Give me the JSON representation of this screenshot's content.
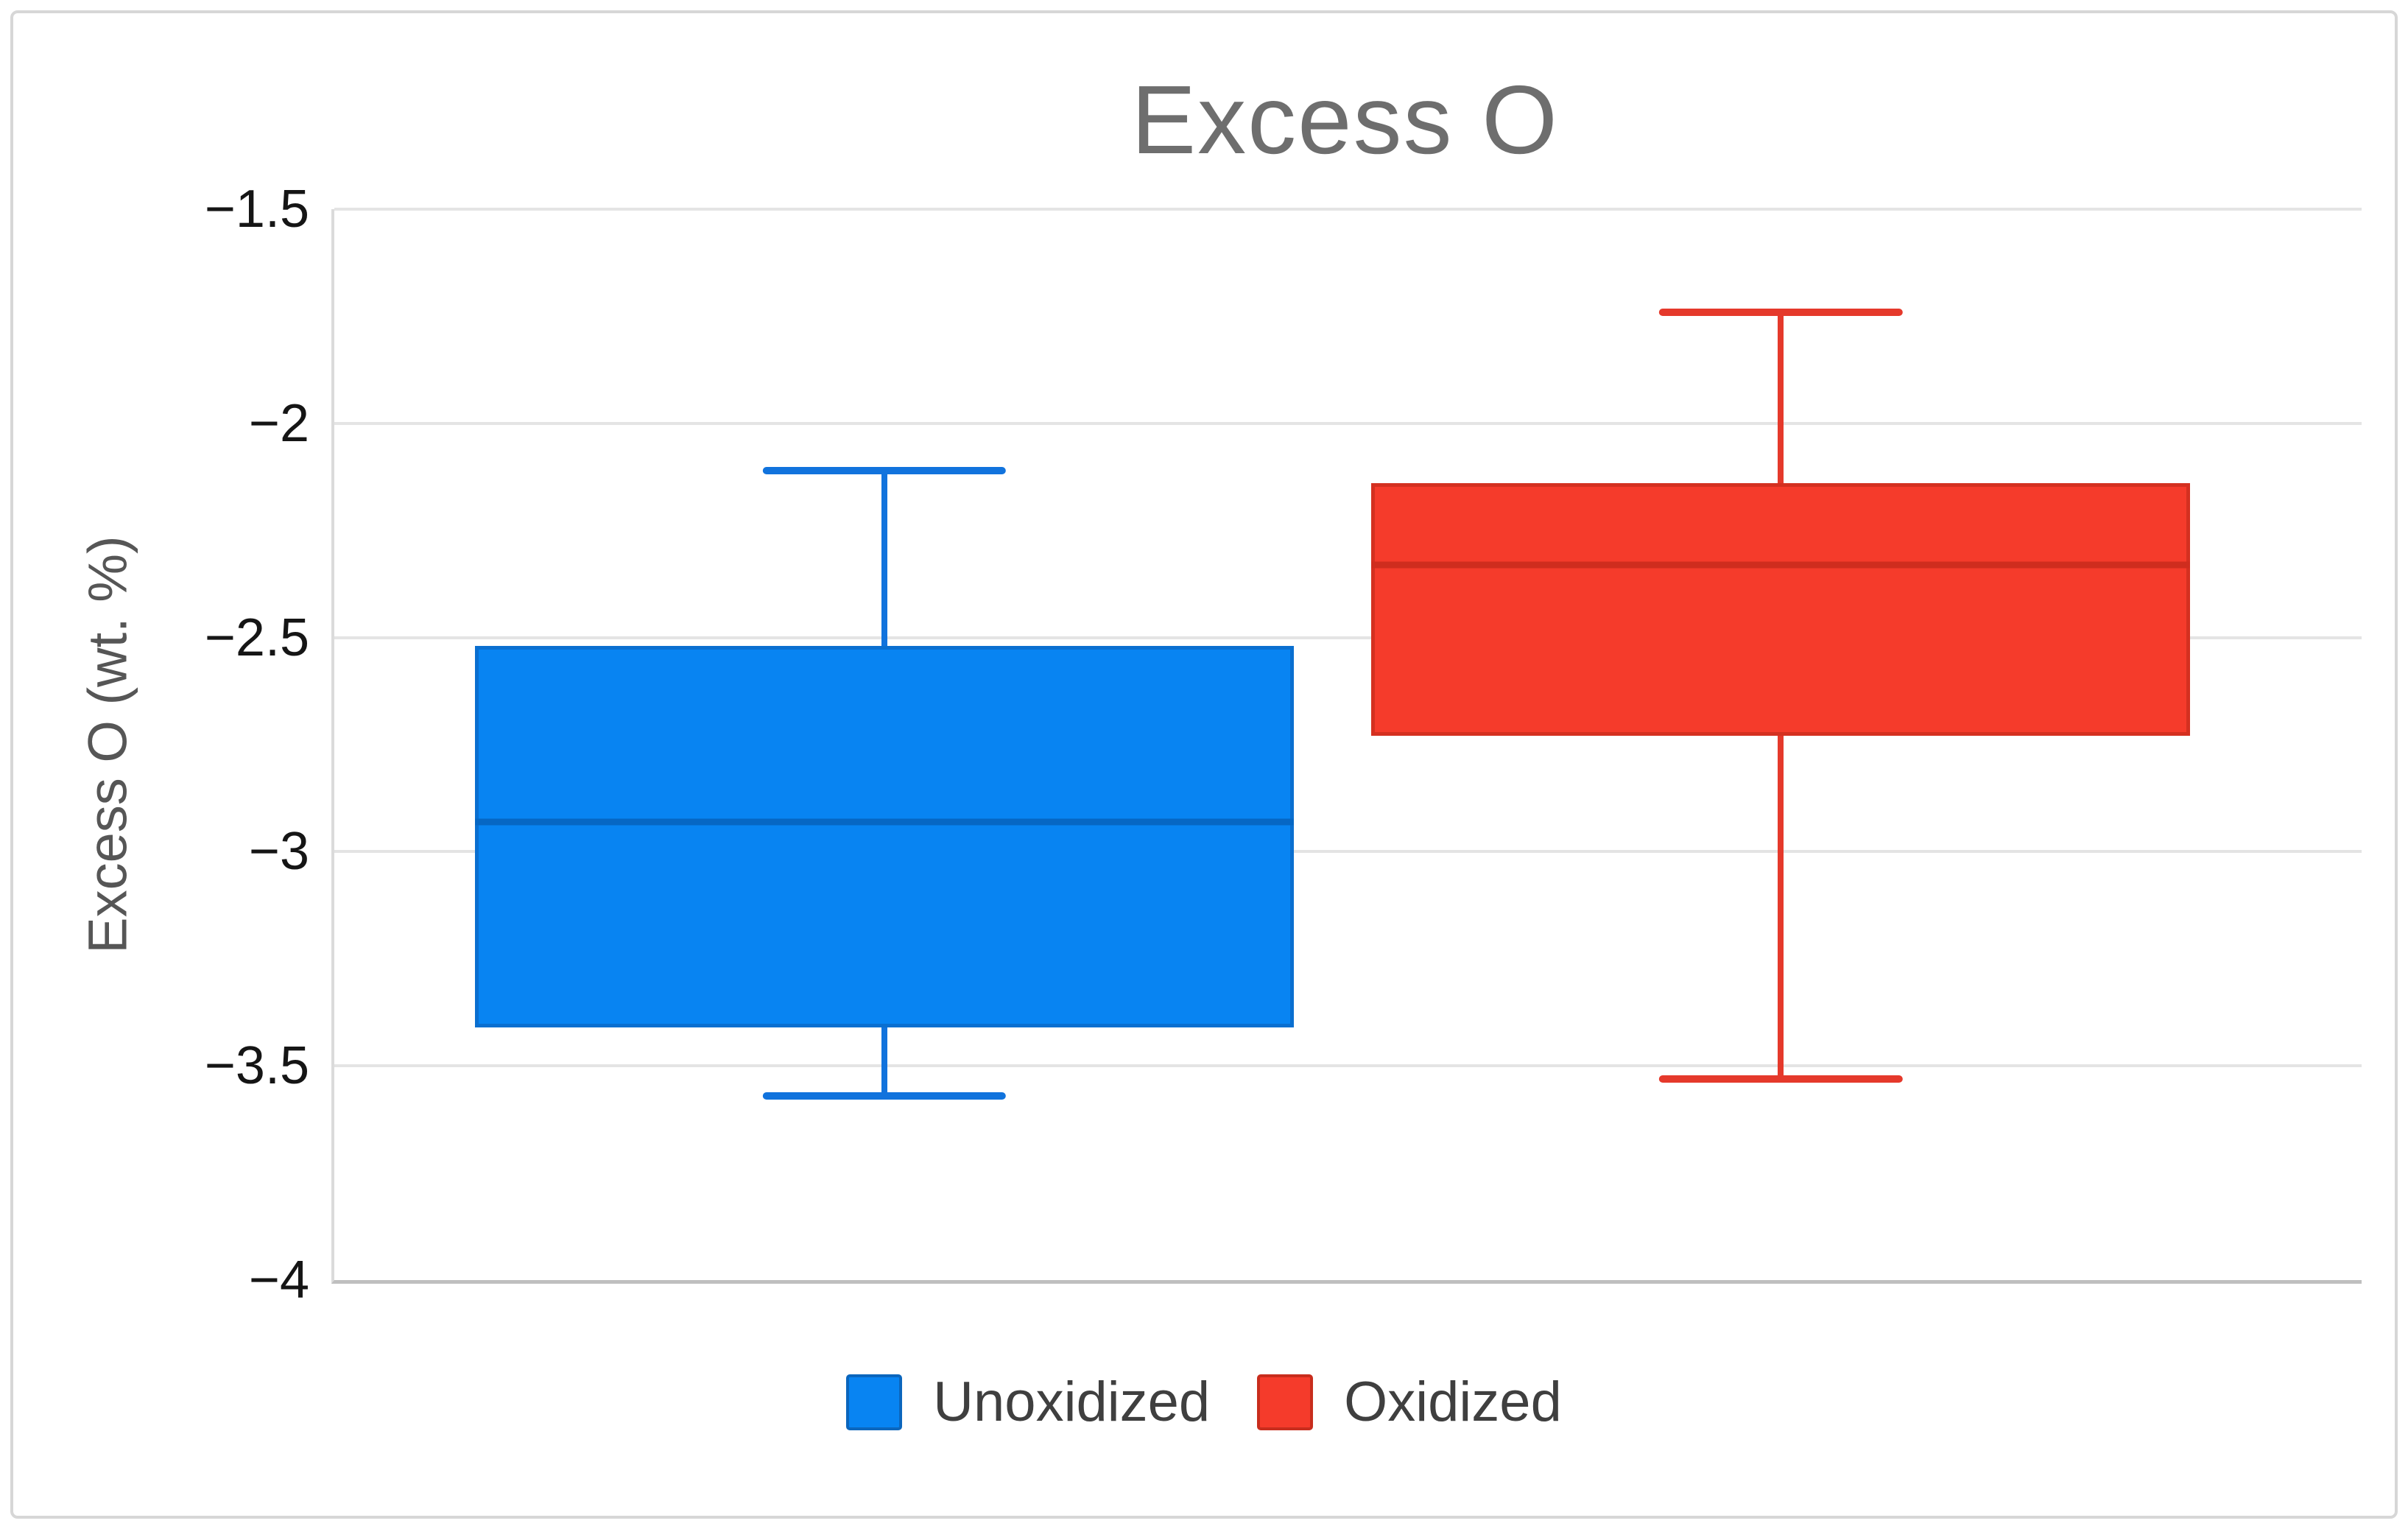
{
  "title": "Excess O",
  "y_axis": {
    "title": "Excess O (wt. %)",
    "ticks": [
      "−1.5",
      "−2",
      "−2.5",
      "−3",
      "−3.5",
      "−4"
    ]
  },
  "legend": {
    "items": [
      {
        "label": "Unoxidized",
        "color": "#0884f2",
        "border_color": "#0b66bd"
      },
      {
        "label": "Oxidized",
        "color": "#f53b2b",
        "border_color": "#c82d1d"
      }
    ]
  },
  "colors": {
    "title_text": "#6e6e6e",
    "axis_title_text": "#565656",
    "tick_text": "#151515",
    "gridline": "#e4e4e4",
    "axis_line": "#bfbfbf",
    "canvas_border": "#d7d7d7"
  },
  "chart_data": {
    "type": "boxplot",
    "title": "Excess O",
    "xlabel": "",
    "ylabel": "Excess O (wt. %)",
    "ylim": [
      -4,
      -1.5
    ],
    "ytick_step": 0.5,
    "grid": true,
    "legend_position": "bottom",
    "categories": [
      "Unoxidized",
      "Oxidized"
    ],
    "series": [
      {
        "name": "Unoxidized",
        "fill_color": "#0884f2",
        "border_color": "#0a6fd0",
        "median_color": "#0667c4",
        "whisker_color": "#1173dd",
        "min": -3.57,
        "q1": -3.41,
        "median": -2.93,
        "q3": -2.52,
        "max": -2.11
      },
      {
        "name": "Oxidized",
        "fill_color": "#f53b2b",
        "border_color": "#d43020",
        "median_color": "#cf2d1e",
        "whisker_color": "#e5392b",
        "min": -3.53,
        "q1": -2.73,
        "median": -2.33,
        "q3": -2.14,
        "max": -1.74
      }
    ]
  }
}
